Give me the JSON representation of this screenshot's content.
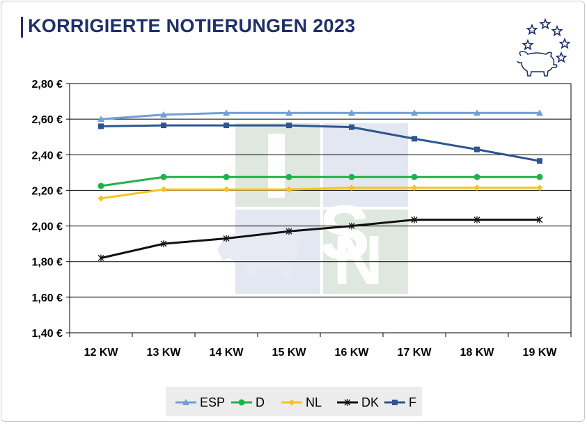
{
  "title": "KORRIGIERTE NOTIERUNGEN 2023",
  "logo_icon": "eu-stars-pig-icon",
  "watermark_icon": "isn-logo-watermark",
  "colors": {
    "title": "#1f2f6b",
    "grid": "#000000"
  },
  "chart_data": {
    "type": "line",
    "title": "KORRIGIERTE NOTIERUNGEN 2023",
    "xlabel": "",
    "ylabel": "",
    "categories": [
      "12 KW",
      "13 KW",
      "14 KW",
      "15 KW",
      "16 KW",
      "17 KW",
      "18 KW",
      "19 KW"
    ],
    "yticks": [
      "1,40 €",
      "1,60 €",
      "1,80 €",
      "2,00 €",
      "2,20 €",
      "2,40 €",
      "2,60 €",
      "2,80 €"
    ],
    "ylim": [
      1.4,
      2.8
    ],
    "grid": true,
    "legend_position": "bottom",
    "series": [
      {
        "name": "ESP",
        "color": "#6f9fd8",
        "marker": "triangle",
        "values": [
          2.6,
          2.625,
          2.635,
          2.635,
          2.635,
          2.635,
          2.635,
          2.635
        ]
      },
      {
        "name": "D",
        "color": "#1fb24a",
        "marker": "circle",
        "values": [
          2.225,
          2.275,
          2.275,
          2.275,
          2.275,
          2.275,
          2.275,
          2.275
        ]
      },
      {
        "name": "NL",
        "color": "#f7c31f",
        "marker": "diamond",
        "values": [
          2.155,
          2.205,
          2.205,
          2.205,
          2.215,
          2.215,
          2.215,
          2.215
        ]
      },
      {
        "name": "DK",
        "color": "#111111",
        "marker": "star",
        "values": [
          1.82,
          1.9,
          1.93,
          1.97,
          2.0,
          2.035,
          2.035,
          2.035
        ]
      },
      {
        "name": "F",
        "color": "#2e5590",
        "marker": "square",
        "values": [
          2.56,
          2.565,
          2.565,
          2.565,
          2.555,
          2.49,
          2.43,
          2.365
        ]
      }
    ]
  }
}
